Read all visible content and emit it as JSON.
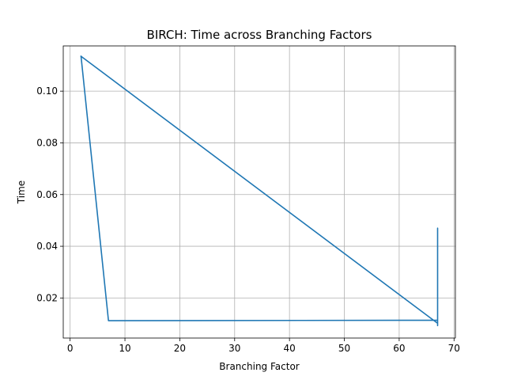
{
  "chart_data": {
    "type": "line",
    "title": "BIRCH: Time across Branching Factors",
    "xlabel": "Branching Factor",
    "ylabel": "Time",
    "xlim": [
      -1.25,
      70.25
    ],
    "ylim": [
      0.0045,
      0.1175
    ],
    "xticks": [
      0,
      10,
      20,
      30,
      40,
      50,
      60,
      70
    ],
    "xtick_labels": [
      "0",
      "10",
      "20",
      "30",
      "40",
      "50",
      "60",
      "70"
    ],
    "yticks": [
      0.02,
      0.04,
      0.06,
      0.08,
      0.1
    ],
    "ytick_labels": [
      "0.02",
      "0.04",
      "0.06",
      "0.08",
      "0.10"
    ],
    "grid": true,
    "series": [
      {
        "color": "#1f77b4",
        "x": [
          2,
          7,
          67,
          67,
          67,
          67,
          67,
          2
        ],
        "y": [
          0.1135,
          0.0112,
          0.0114,
          0.047,
          0.0093,
          0.0465,
          0.0102,
          0.1135
        ]
      }
    ]
  }
}
